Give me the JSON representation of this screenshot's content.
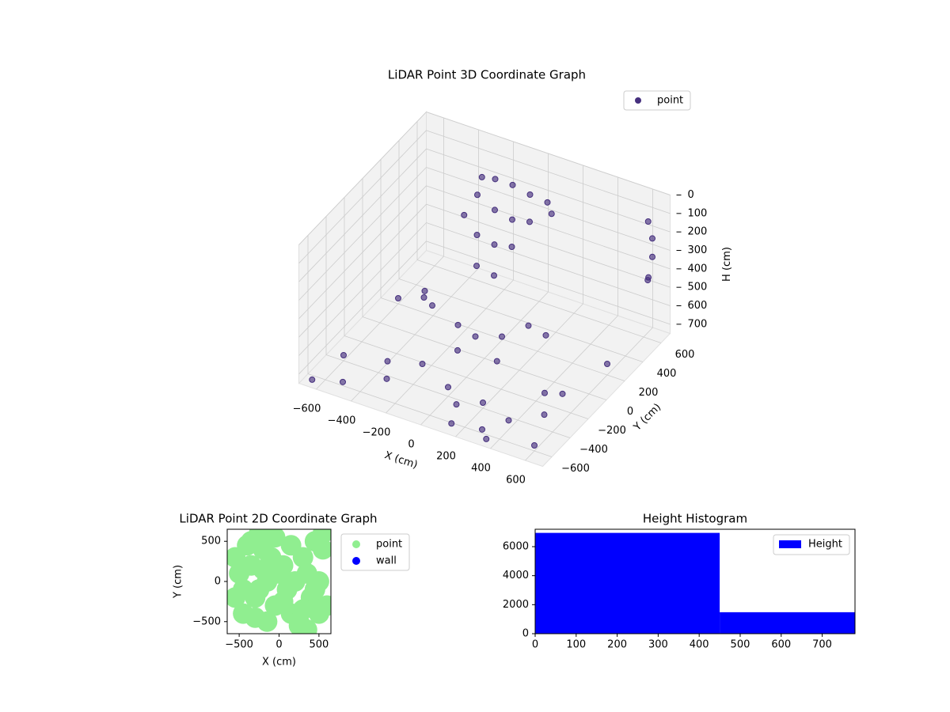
{
  "chart_data": [
    {
      "type": "scatter3d",
      "title": "LiDAR Point 3D Coordinate Graph",
      "xlabel": "X (cm)",
      "ylabel": "Y (cm)",
      "zlabel": "H (cm)",
      "xlim": [
        -700,
        700
      ],
      "ylim": [
        -700,
        700
      ],
      "zlim": [
        0,
        750
      ],
      "z_inverted": true,
      "legend": "upper right",
      "grid": true,
      "xticks": [
        {
          "value": -600,
          "label": "−600"
        },
        {
          "value": -400,
          "label": "−400"
        },
        {
          "value": -200,
          "label": "−200"
        },
        0,
        200,
        400,
        600
      ],
      "yticks": [
        {
          "value": -600,
          "label": "−600"
        },
        {
          "value": -400,
          "label": "−400"
        },
        {
          "value": -200,
          "label": "−200"
        },
        0,
        200,
        400,
        600
      ],
      "zticks": [
        0,
        100,
        200,
        300,
        400,
        500,
        600,
        700
      ],
      "series": [
        {
          "name": "point",
          "color": "#46307e",
          "x": [
            -200,
            -100,
            0,
            100,
            -250,
            -150,
            -50,
            50,
            -200,
            -100,
            0,
            -150,
            -50,
            -250,
            150,
            -300,
            650,
            650,
            650,
            600,
            680,
            -100,
            0,
            100,
            -50,
            150,
            200,
            300,
            -300,
            -400,
            -600,
            -500,
            -400,
            -300,
            200,
            300,
            400,
            500,
            600,
            100,
            -200,
            0,
            500,
            600,
            -500,
            -600,
            350,
            -650,
            150,
            450
          ],
          "y": [
            500,
            500,
            500,
            500,
            400,
            400,
            400,
            400,
            300,
            300,
            300,
            200,
            200,
            450,
            450,
            350,
            600,
            600,
            550,
            650,
            500,
            -100,
            -100,
            0,
            -200,
            -150,
            100,
            100,
            0,
            100,
            -400,
            -600,
            -300,
            -500,
            -400,
            -600,
            -500,
            -300,
            -600,
            -500,
            -300,
            -400,
            -100,
            200,
            300,
            200,
            -650,
            -650,
            -650,
            -200
          ],
          "z": [
            100,
            100,
            120,
            130,
            150,
            200,
            220,
            200,
            300,
            320,
            300,
            400,
            420,
            80,
            150,
            250,
            200,
            300,
            400,
            150,
            350,
            550,
            580,
            600,
            620,
            640,
            560,
            580,
            560,
            600,
            720,
            730,
            740,
            700,
            720,
            730,
            700,
            740,
            720,
            710,
            690,
            700,
            730,
            690,
            700,
            720,
            740,
            740,
            720,
            690
          ]
        }
      ]
    },
    {
      "type": "scatter",
      "title": "LiDAR Point 2D Coordinate Graph",
      "xlabel": "X (cm)",
      "ylabel": "Y (cm)",
      "xlim": [
        -650,
        650
      ],
      "ylim": [
        -650,
        650
      ],
      "legend": "outside right",
      "xticks": [
        {
          "value": -500,
          "label": "−500"
        },
        0,
        500
      ],
      "yticks": [
        {
          "value": -500,
          "label": "−500"
        },
        0,
        500
      ],
      "series": [
        {
          "name": "point",
          "color": "#90ee90",
          "x": [
            -550,
            -500,
            -450,
            -400,
            -350,
            -300,
            -250,
            -200,
            -150,
            -100,
            -50,
            0,
            50,
            100,
            150,
            200,
            250,
            300,
            350,
            400,
            450,
            500,
            550,
            600,
            -550,
            -450,
            -350,
            -250,
            -150,
            -50,
            50,
            150,
            250,
            350,
            450,
            550,
            -300,
            -200,
            300,
            500
          ],
          "y": [
            300,
            100,
            -100,
            450,
            200,
            -200,
            600,
            400,
            0,
            300,
            -300,
            100,
            200,
            -100,
            -400,
            0,
            -500,
            300,
            -600,
            -200,
            500,
            -400,
            600,
            -300,
            -200,
            -400,
            500,
            -100,
            -500,
            550,
            -250,
            450,
            -550,
            100,
            -100,
            400,
            -450,
            150,
            -350,
            0
          ]
        },
        {
          "name": "wall",
          "color": "#0000ff",
          "x": [],
          "y": []
        }
      ]
    },
    {
      "type": "histogram",
      "title": "Height Histogram",
      "legend": "upper right",
      "bins": [
        0,
        450,
        780
      ],
      "counts": [
        6950,
        1480
      ],
      "name": "Height",
      "color": "#0000ff",
      "xlim": [
        0,
        780
      ],
      "ylim": [
        0,
        7200
      ],
      "xticks": [
        0,
        100,
        200,
        300,
        400,
        500,
        600,
        700
      ],
      "yticks": [
        0,
        2000,
        4000,
        6000
      ]
    }
  ]
}
